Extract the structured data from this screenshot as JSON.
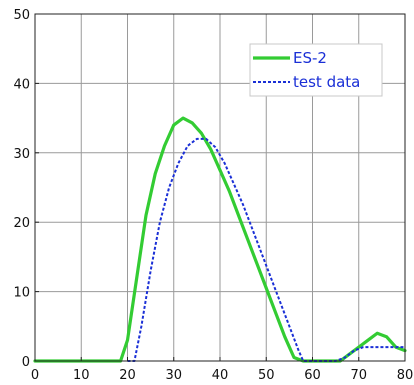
{
  "chart_data": {
    "type": "line",
    "title": "",
    "xlabel": "",
    "ylabel": "",
    "xlim": [
      0,
      80
    ],
    "ylim": [
      0,
      50
    ],
    "x_ticks": [
      0,
      10,
      20,
      30,
      40,
      50,
      60,
      70,
      80
    ],
    "y_ticks": [
      0,
      10,
      20,
      30,
      40,
      50
    ],
    "grid": true,
    "legend_position": "top-right",
    "series": [
      {
        "name": "ES-2",
        "color": "#33cc33",
        "style": "solid",
        "x": [
          0,
          18.5,
          20,
          22,
          24,
          26,
          28,
          30,
          32,
          34,
          36,
          38,
          40,
          42,
          44,
          46,
          48,
          50,
          52,
          54,
          56,
          58,
          66,
          68,
          70,
          72,
          74,
          76,
          78,
          80
        ],
        "y": [
          0,
          0,
          3,
          12,
          21,
          27,
          31,
          34,
          35,
          34.3,
          32.8,
          30.5,
          27.5,
          24.5,
          21,
          17.5,
          14,
          10.5,
          7,
          3.5,
          0.5,
          0,
          0,
          1,
          2,
          3,
          4,
          3.5,
          2,
          1.5
        ]
      },
      {
        "name": "test data",
        "color": "#1a2fd6",
        "style": "dashed",
        "x": [
          20,
          21.5,
          23,
          25,
          27,
          29,
          31,
          33,
          35,
          37,
          39,
          41,
          43,
          45,
          47,
          49,
          51,
          53,
          55,
          57,
          58,
          65,
          67,
          69,
          71,
          73,
          75,
          77,
          80
        ],
        "y": [
          0,
          0,
          5,
          13,
          20,
          25,
          28.5,
          31,
          32,
          32,
          30.8,
          28.5,
          25.5,
          22.5,
          19,
          15.5,
          12,
          8.5,
          5,
          1.5,
          0,
          0,
          0.5,
          1.5,
          2,
          2,
          2,
          2,
          2
        ]
      }
    ]
  }
}
